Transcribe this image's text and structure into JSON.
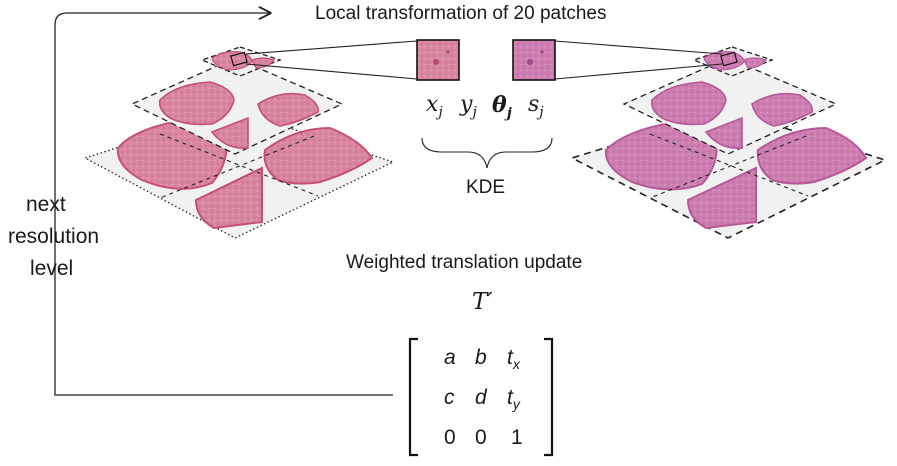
{
  "title": "Local transformation of 20 patches",
  "loop_label": [
    "next",
    "resolution",
    "level"
  ],
  "params": {
    "x": "x",
    "x_sub": "j",
    "y": "y",
    "y_sub": "j",
    "theta": "θ",
    "theta_sub": "j",
    "s": "s",
    "s_sub": "j"
  },
  "kde_label": "KDE",
  "update_label": "Weighted translation update",
  "transform_symbol": "T′",
  "matrix": {
    "row1": [
      "a",
      "b",
      "t",
      "x"
    ],
    "row2": [
      "c",
      "d",
      "t",
      "y"
    ],
    "row3": [
      "0",
      "0",
      "1"
    ]
  },
  "colors": {
    "tissue_left": "#d9879e",
    "tissue_left_edge": "#c54f76",
    "tissue_right": "#cd7fb1",
    "tissue_right_edge": "#b8579a",
    "pyramid_fill": "#f1f1f1",
    "line": "#222222"
  }
}
